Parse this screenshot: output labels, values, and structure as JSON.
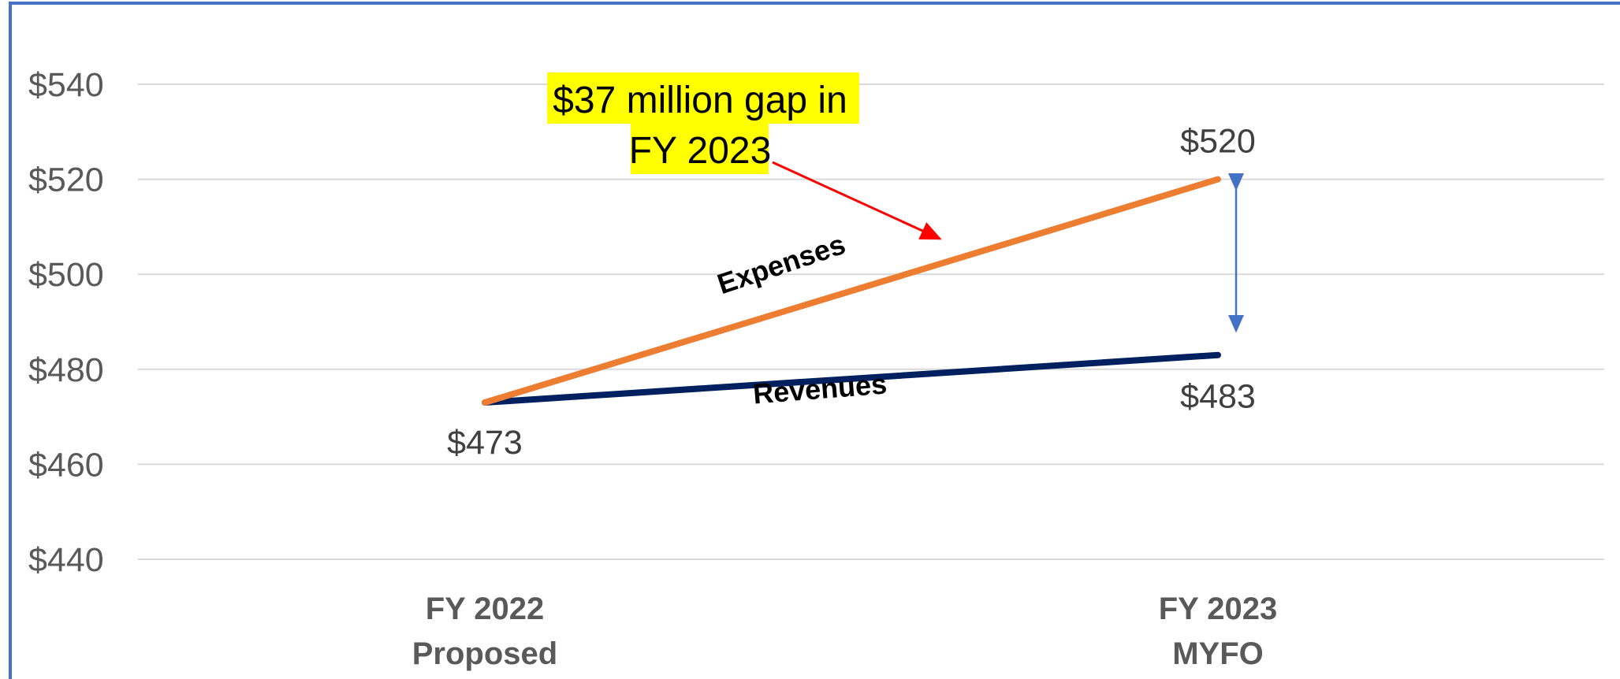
{
  "chart_data": {
    "type": "line",
    "categories": [
      [
        "FY 2022",
        "Proposed"
      ],
      [
        "FY 2023",
        "MYFO"
      ]
    ],
    "series": [
      {
        "name": "Expenses",
        "values": [
          473,
          520
        ],
        "color": "#ED7D31"
      },
      {
        "name": "Revenues",
        "values": [
          473,
          483
        ],
        "color": "#002060"
      }
    ],
    "ylim": [
      440,
      540
    ],
    "yticks": [
      540,
      520,
      500,
      480,
      460,
      440
    ],
    "ytick_labels": [
      "$540",
      "$520",
      "$500",
      "$480",
      "$460",
      "$440"
    ],
    "data_labels": [
      {
        "series": "Expenses",
        "index": 1,
        "text": "$520"
      },
      {
        "series": "Revenues",
        "index": 0,
        "text": "$473"
      },
      {
        "series": "Revenues",
        "index": 1,
        "text": "$483"
      }
    ],
    "annotation": {
      "lines": [
        "$37 million gap in",
        "FY 2023"
      ],
      "highlight_color": "#FFFF00",
      "arrow_color": "#FF0000"
    },
    "gap_arrow_color": "#4472C4",
    "grid": true,
    "frame_color": "#4472C4"
  }
}
